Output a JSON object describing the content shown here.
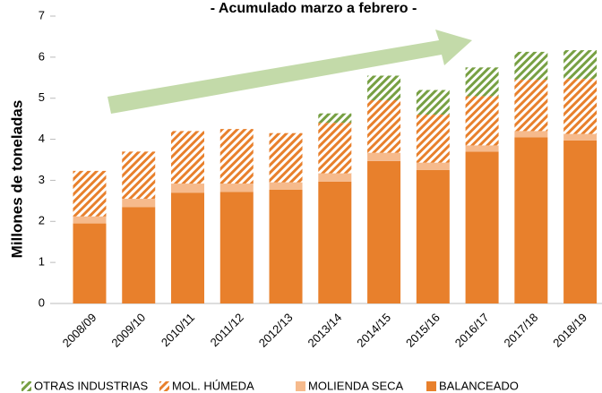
{
  "chart_data": {
    "type": "stacked_bar",
    "title": "- Acumulado marzo a febrero -",
    "ylabel": "Millones de toneladas",
    "categories": [
      "2008/09",
      "2009/10",
      "2010/11",
      "2011/12",
      "2012/13",
      "2013/14",
      "2014/15",
      "2015/16",
      "2016/17",
      "2017/18",
      "2018/19"
    ],
    "series": [
      {
        "name": "BALANCEADO",
        "color": "#e8802c",
        "hatch": false,
        "values": [
          1.95,
          2.35,
          2.7,
          2.72,
          2.77,
          2.97,
          3.47,
          3.25,
          3.7,
          4.05,
          3.97
        ]
      },
      {
        "name": "MOLIENDA SECA",
        "color": "#f6ba8c",
        "hatch": false,
        "values": [
          0.17,
          0.2,
          0.22,
          0.2,
          0.18,
          0.2,
          0.2,
          0.18,
          0.15,
          0.15,
          0.16
        ]
      },
      {
        "name": "MOL. HÚMEDA",
        "color": "#e8802c",
        "hatch": true,
        "values": [
          1.11,
          1.15,
          1.28,
          1.33,
          1.2,
          1.23,
          1.28,
          1.17,
          1.2,
          1.25,
          1.34
        ]
      },
      {
        "name": "OTRAS INDUSTRIAS",
        "color": "#77a043",
        "hatch": true,
        "values": [
          0,
          0,
          0,
          0,
          0,
          0.23,
          0.6,
          0.6,
          0.7,
          0.68,
          0.7
        ]
      }
    ],
    "ylim": [
      0,
      7
    ],
    "yticks": [
      0,
      1,
      2,
      3,
      4,
      5,
      6,
      7
    ],
    "grid": false,
    "legend": "bottom"
  }
}
